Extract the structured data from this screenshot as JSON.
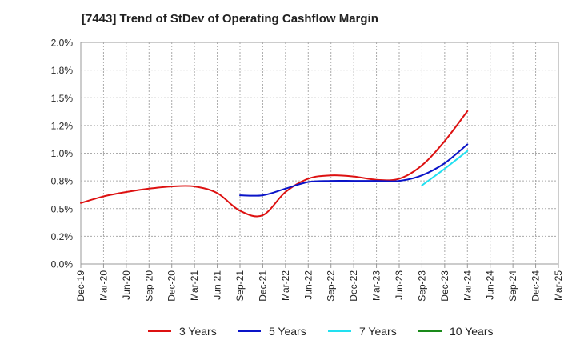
{
  "chart_data": {
    "type": "line",
    "title": "[7443]  Trend of StDev of Operating Cashflow Margin",
    "xlabel": "",
    "ylabel": "",
    "categories": [
      "Dec-19",
      "Mar-20",
      "Jun-20",
      "Sep-20",
      "Dec-20",
      "Mar-21",
      "Jun-21",
      "Sep-21",
      "Dec-21",
      "Mar-22",
      "Jun-22",
      "Sep-22",
      "Dec-22",
      "Mar-23",
      "Jun-23",
      "Sep-23",
      "Dec-23",
      "Mar-24",
      "Jun-24",
      "Sep-24",
      "Dec-24",
      "Mar-25"
    ],
    "y_ticks": [
      "0.0%",
      "0.2%",
      "0.5%",
      "0.8%",
      "1.0%",
      "1.2%",
      "1.5%",
      "1.8%",
      "2.0%"
    ],
    "ylim": [
      0,
      2.0
    ],
    "grid": true,
    "legend_position": "bottom",
    "series": [
      {
        "name": "3 Years",
        "color": "#dd1111",
        "values": [
          0.55,
          0.61,
          0.65,
          0.68,
          0.7,
          0.7,
          0.64,
          0.48,
          0.44,
          0.65,
          0.77,
          0.8,
          0.79,
          0.76,
          0.77,
          0.89,
          1.11,
          1.38,
          null,
          null,
          null,
          null
        ]
      },
      {
        "name": "5 Years",
        "color": "#0a14c8",
        "values": [
          null,
          null,
          null,
          null,
          null,
          null,
          null,
          0.62,
          0.62,
          0.68,
          0.74,
          0.75,
          0.75,
          0.75,
          0.75,
          0.8,
          0.91,
          1.08,
          null,
          null,
          null,
          null
        ]
      },
      {
        "name": "7 Years",
        "color": "#22e0f0",
        "values": [
          null,
          null,
          null,
          null,
          null,
          null,
          null,
          null,
          null,
          null,
          null,
          null,
          null,
          null,
          null,
          0.71,
          0.86,
          1.02,
          null,
          null,
          null,
          null
        ]
      },
      {
        "name": "10 Years",
        "color": "#1a8a1a",
        "values": [
          null,
          null,
          null,
          null,
          null,
          null,
          null,
          null,
          null,
          null,
          null,
          null,
          null,
          null,
          null,
          null,
          null,
          null,
          null,
          null,
          null,
          null
        ]
      }
    ]
  }
}
